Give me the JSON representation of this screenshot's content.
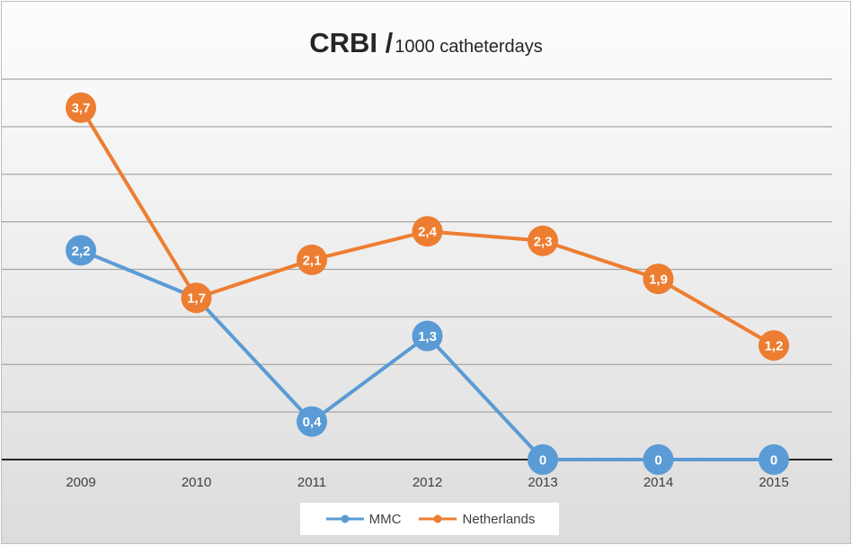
{
  "chart_data": {
    "type": "line",
    "title": "CRBI /",
    "title_sub": "1000 catheterdays",
    "categories": [
      "2009",
      "2010",
      "2011",
      "2012",
      "2013",
      "2014",
      "2015"
    ],
    "ylim": [
      0,
      4
    ],
    "y_gridline_step": 0.5,
    "grid": true,
    "legend_position": "bottom",
    "data_labels": true,
    "series": [
      {
        "name": "MMC",
        "color": "#5b9bd5",
        "values": [
          2.2,
          1.7,
          0.4,
          1.3,
          0,
          0,
          0
        ],
        "labels": [
          "2,2",
          "",
          "0,4",
          "1,3",
          "0",
          "0",
          "0"
        ]
      },
      {
        "name": "Netherlands",
        "color": "#ed7d31",
        "values": [
          3.7,
          1.7,
          2.1,
          2.4,
          2.3,
          1.9,
          1.2
        ],
        "labels": [
          "3,7",
          "1,7",
          "2,1",
          "2,4",
          "2,3",
          "1,9",
          "1,2"
        ]
      }
    ]
  }
}
